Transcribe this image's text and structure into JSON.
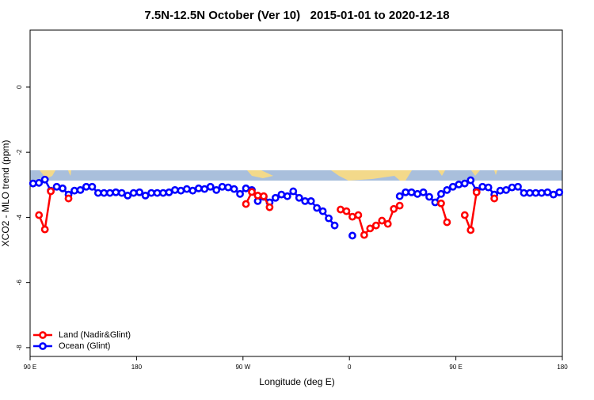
{
  "chart_data": {
    "type": "line",
    "title": "7.5N-12.5N October (Ver 10)   2015-01-01 to 2020-12-18",
    "xlabel": "Longitude (deg E)",
    "ylabel": "XCO2 - MLO trend (ppm)",
    "xlim": [
      90,
      540
    ],
    "ylim": [
      -8.27,
      1.75
    ],
    "xticks": [
      {
        "value": 90,
        "label": "90 E"
      },
      {
        "value": 180,
        "label": "180"
      },
      {
        "value": 270,
        "label": "90 W"
      },
      {
        "value": 360,
        "label": "0"
      },
      {
        "value": 450,
        "label": "90 E"
      },
      {
        "value": 540,
        "label": "180"
      }
    ],
    "yticks": [
      -8,
      -6,
      -4,
      -2,
      0
    ],
    "legend": "bottom-left",
    "x": [
      92.5,
      97.5,
      102.5,
      107.5,
      112.5,
      117.5,
      122.5,
      127.5,
      132.5,
      137.5,
      142.5,
      147.5,
      152.5,
      157.5,
      162.5,
      167.5,
      172.5,
      177.5,
      182.5,
      187.5,
      192.5,
      197.5,
      202.5,
      207.5,
      212.5,
      217.5,
      222.5,
      227.5,
      232.5,
      237.5,
      242.5,
      247.5,
      252.5,
      257.5,
      262.5,
      267.5,
      272.5,
      277.5,
      282.5,
      287.5,
      292.5,
      297.5,
      302.5,
      307.5,
      312.5,
      317.5,
      322.5,
      327.5,
      332.5,
      337.5,
      342.5,
      347.5,
      352.5,
      357.5,
      362.5,
      367.5,
      372.5,
      377.5,
      382.5,
      387.5,
      392.5,
      397.5,
      402.5,
      407.5,
      412.5,
      417.5,
      422.5,
      427.5,
      432.5,
      437.5,
      442.5,
      447.5,
      452.5,
      457.5,
      462.5,
      467.5,
      472.5,
      477.5,
      482.5,
      487.5,
      492.5,
      497.5,
      502.5,
      507.5,
      512.5,
      517.5,
      522.5,
      527.5,
      532.5,
      537.5
    ],
    "series": [
      {
        "name": "Land (Nadir&Glint)",
        "color": "#ff0000",
        "values": [
          null,
          -3.93,
          -4.37,
          -3.2,
          null,
          null,
          -3.42,
          null,
          null,
          null,
          null,
          null,
          null,
          null,
          null,
          null,
          null,
          null,
          null,
          null,
          null,
          null,
          null,
          null,
          null,
          null,
          null,
          null,
          null,
          null,
          null,
          null,
          null,
          null,
          null,
          null,
          -3.59,
          -3.22,
          -3.33,
          -3.35,
          -3.69,
          null,
          null,
          null,
          null,
          null,
          null,
          null,
          null,
          null,
          null,
          null,
          -3.76,
          -3.81,
          -3.98,
          -3.93,
          -4.54,
          -4.34,
          -4.25,
          -4.1,
          -4.2,
          -3.74,
          -3.64,
          null,
          null,
          null,
          null,
          null,
          null,
          -3.57,
          -4.15,
          null,
          null,
          -3.93,
          -4.39,
          -3.23,
          null,
          null,
          -3.42,
          null,
          null,
          null,
          null,
          null,
          null,
          null,
          null,
          null,
          null,
          null
        ]
      },
      {
        "name": "Ocean (Glint)",
        "color": "#0000ff",
        "values": [
          -2.96,
          -2.94,
          -2.84,
          -3.18,
          -3.06,
          -3.11,
          -3.3,
          -3.18,
          -3.16,
          -3.06,
          -3.06,
          -3.25,
          -3.25,
          -3.25,
          -3.23,
          -3.25,
          -3.33,
          -3.25,
          -3.23,
          -3.33,
          -3.25,
          -3.25,
          -3.25,
          -3.23,
          -3.16,
          -3.18,
          -3.13,
          -3.18,
          -3.11,
          -3.13,
          -3.06,
          -3.16,
          -3.06,
          -3.08,
          -3.13,
          -3.28,
          -3.11,
          -3.16,
          -3.5,
          -3.37,
          -3.54,
          -3.4,
          -3.3,
          -3.35,
          -3.2,
          -3.4,
          -3.5,
          -3.5,
          -3.71,
          -3.81,
          -4.03,
          -4.25,
          null,
          null,
          -4.56,
          null,
          null,
          null,
          null,
          null,
          null,
          null,
          -3.35,
          -3.23,
          -3.23,
          -3.28,
          -3.23,
          -3.37,
          -3.54,
          -3.28,
          -3.16,
          -3.06,
          -2.99,
          -2.96,
          -2.86,
          -3.18,
          -3.06,
          -3.08,
          -3.3,
          -3.18,
          -3.16,
          -3.08,
          -3.06,
          -3.25,
          -3.25,
          -3.25,
          -3.25,
          -3.23,
          -3.3,
          -3.23
        ]
      }
    ]
  }
}
